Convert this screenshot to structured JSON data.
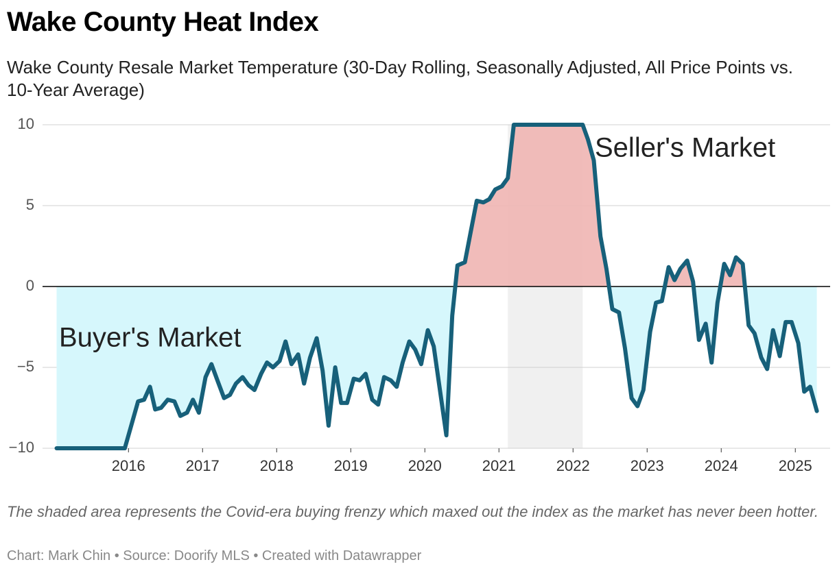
{
  "chart_data": {
    "type": "line",
    "title": "Wake County Heat Index",
    "subtitle": "Wake County Resale Market Temperature (30-Day Rolling, Seasonally Adjusted, All Price Points vs. 10-Year Average)",
    "note": "The shaded area represents the Covid-era buying frenzy which maxed out the index as the market has never been hotter.",
    "footer": "Chart: Mark Chin • Source: Doorify MLS • Created with Datawrapper",
    "annotations": [
      "Seller's Market",
      "Buyer's Market"
    ],
    "x": [
      2015.03,
      2015.95,
      2016.13,
      2016.21,
      2016.29,
      2016.36,
      2016.44,
      2016.53,
      2016.62,
      2016.7,
      2016.79,
      2016.87,
      2016.95,
      2017.04,
      2017.12,
      2017.2,
      2017.29,
      2017.37,
      2017.45,
      2017.54,
      2017.62,
      2017.7,
      2017.79,
      2017.87,
      2017.95,
      2018.04,
      2018.12,
      2018.2,
      2018.29,
      2018.37,
      2018.45,
      2018.54,
      2018.62,
      2018.7,
      2018.79,
      2018.87,
      2018.95,
      2019.04,
      2019.12,
      2019.2,
      2019.29,
      2019.37,
      2019.45,
      2019.54,
      2019.62,
      2019.7,
      2019.79,
      2019.87,
      2019.95,
      2020.04,
      2020.12,
      2020.2,
      2020.29,
      2020.37,
      2020.44,
      2020.54,
      2020.62,
      2020.7,
      2020.79,
      2020.87,
      2020.95,
      2021.04,
      2021.12,
      2021.2,
      2022.13,
      2022.2,
      2022.28,
      2022.37,
      2022.45,
      2022.53,
      2022.62,
      2022.7,
      2022.79,
      2022.87,
      2022.95,
      2023.04,
      2023.12,
      2023.2,
      2023.29,
      2023.37,
      2023.45,
      2023.54,
      2023.62,
      2023.7,
      2023.79,
      2023.87,
      2023.95,
      2024.04,
      2024.12,
      2024.2,
      2024.29,
      2024.37,
      2024.45,
      2024.54,
      2024.62,
      2024.7,
      2024.79,
      2024.87,
      2024.95,
      2025.04,
      2025.12,
      2025.2,
      2025.29
    ],
    "values": [
      -10,
      -10,
      -7.1,
      -7.0,
      -6.2,
      -7.6,
      -7.5,
      -7.0,
      -7.1,
      -8.0,
      -7.8,
      -7.0,
      -7.8,
      -5.6,
      -4.8,
      -5.8,
      -6.9,
      -6.7,
      -6.0,
      -5.6,
      -6.1,
      -6.4,
      -5.4,
      -4.7,
      -5.0,
      -4.6,
      -3.4,
      -4.8,
      -4.2,
      -6.0,
      -4.4,
      -3.2,
      -5.2,
      -8.6,
      -5.0,
      -7.2,
      -7.2,
      -5.7,
      -5.8,
      -5.4,
      -7.0,
      -7.3,
      -5.6,
      -5.8,
      -6.2,
      -4.7,
      -3.4,
      -3.9,
      -4.8,
      -2.7,
      -3.7,
      -6.3,
      -9.2,
      -1.8,
      1.3,
      1.5,
      3.4,
      5.3,
      5.2,
      5.4,
      6.0,
      6.2,
      6.7,
      10,
      10,
      9.1,
      7.8,
      3.1,
      1.1,
      -1.4,
      -1.6,
      -3.8,
      -6.9,
      -7.4,
      -6.4,
      -2.8,
      -1.0,
      -0.9,
      1.2,
      0.4,
      1.1,
      1.6,
      0.3,
      -3.3,
      -2.3,
      -4.7,
      -1.0,
      1.4,
      0.7,
      1.8,
      1.4,
      -2.4,
      -2.9,
      -4.4,
      -5.1,
      -2.7,
      -4.3,
      -2.2,
      -2.2,
      -3.5,
      -6.5,
      -6.2,
      -7.7
    ],
    "xlim": [
      2014.84,
      2025.47
    ],
    "xticks": [
      2016,
      2017,
      2018,
      2019,
      2020,
      2021,
      2022,
      2023,
      2024,
      2025
    ],
    "ylim": [
      -10,
      10
    ],
    "yticks": [
      {
        "value": -10,
        "label": "−10"
      },
      {
        "value": -5,
        "label": "−5"
      },
      0,
      5,
      10
    ],
    "grid": true,
    "highlight_range": [
      2021.12,
      2022.13
    ],
    "line_color": "#17607a",
    "area_above_color": "#f0b5b3",
    "area_below_color": "#d6f7fc",
    "highlight_color": "#f0f0f0"
  }
}
